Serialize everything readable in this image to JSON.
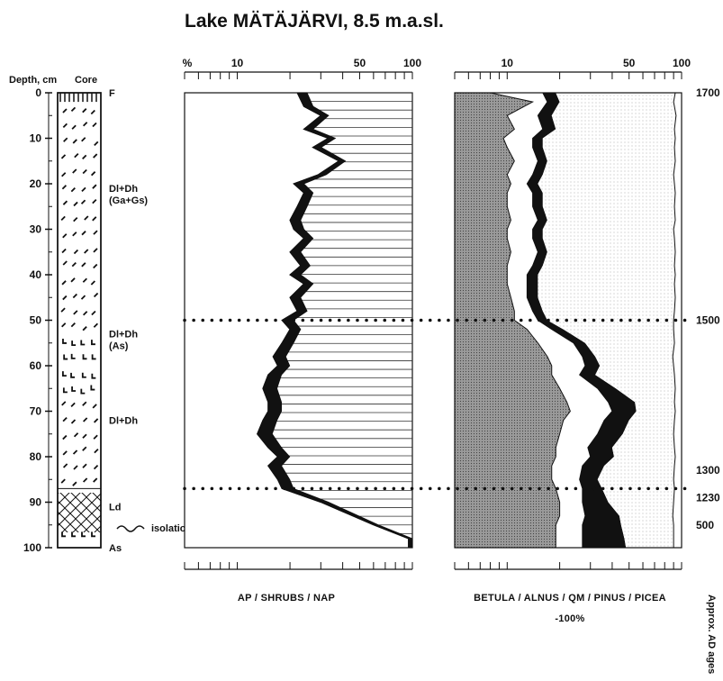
{
  "title": "Lake MÄTÄJÄRVI, 8.5 m.a.sl.",
  "colors": {
    "ink": "#111111",
    "betula": "#8a8a8a",
    "alnus": "#ffffff",
    "qm": "#111111",
    "pinus": "#e4e4e4",
    "picea": "#ffffff"
  },
  "lithology": {
    "depth_header": "Depth, cm",
    "core_header": "Core",
    "depth_ticks": [
      "0",
      "10",
      "20",
      "30",
      "40",
      "50",
      "60",
      "70",
      "80",
      "90",
      "100"
    ],
    "units": [
      {
        "label": "F",
        "depth": 0
      },
      {
        "label": "Dl+Dh",
        "sublabel": "(Ga+Gs)",
        "depth": 21
      },
      {
        "label": "Dl+Dh",
        "sublabel": "(As)",
        "depth": 53
      },
      {
        "label": "Dl+Dh",
        "sublabel": "",
        "depth": 72
      },
      {
        "label": "Ld",
        "sublabel": "",
        "depth": 91
      },
      {
        "label": "As",
        "sublabel": "",
        "depth": 100
      }
    ],
    "isolation_label": "isolation"
  },
  "chart_data": [
    {
      "type": "area",
      "x_scale": "log",
      "xlim": [
        5,
        100
      ],
      "ylim": [
        0,
        100
      ],
      "ylabel": "Depth, cm",
      "xticks": [
        "%",
        "10",
        "50",
        "100"
      ],
      "xlabel": "AP / SHRUBS / NAP",
      "depth": [
        0,
        3,
        5,
        8,
        10,
        12,
        15,
        18,
        20,
        22,
        25,
        28,
        30,
        32,
        35,
        38,
        40,
        42,
        45,
        48,
        50,
        52,
        55,
        58,
        60,
        62,
        65,
        68,
        70,
        72,
        75,
        78,
        80,
        82,
        85,
        87,
        90,
        95,
        98,
        100
      ],
      "ap": [
        22,
        24,
        30,
        24,
        33,
        27,
        38,
        29,
        21,
        24,
        22,
        20,
        21,
        24,
        20,
        23,
        20,
        24,
        20,
        22,
        18,
        20,
        18,
        16,
        17,
        15,
        14,
        15,
        15,
        14,
        13,
        15,
        17,
        15,
        17,
        18,
        30,
        60,
        95,
        95
      ],
      "shrubs": [
        2.5,
        2.5,
        2.5,
        2.5,
        2.5,
        2.5,
        2.5,
        2.5,
        2.5,
        2.5,
        2.5,
        2.5,
        2.5,
        2.5,
        2.5,
        2.5,
        2.5,
        2.5,
        2.5,
        2.5,
        2.5,
        2.5,
        2.5,
        2.5,
        2.5,
        2.5,
        2.5,
        2.5,
        2.5,
        2.5,
        2.5,
        2.5,
        2.5,
        2.5,
        2.5,
        2.5,
        2.5,
        2.5,
        2.5,
        2.5
      ],
      "series": [
        {
          "name": "AP"
        },
        {
          "name": "SHRUBS"
        },
        {
          "name": "NAP"
        }
      ]
    },
    {
      "type": "area",
      "x_scale": "log",
      "xlim": [
        5,
        100
      ],
      "ylim": [
        0,
        100
      ],
      "xticks": [
        "10",
        "50",
        "100"
      ],
      "xlabel": "BETULA / ALNUS / QM / PINUS / PICEA",
      "xlabel_note": "-100%",
      "depth": [
        0,
        2,
        5,
        8,
        10,
        12,
        15,
        18,
        20,
        22,
        25,
        28,
        30,
        32,
        35,
        38,
        40,
        42,
        45,
        48,
        50,
        52,
        55,
        58,
        60,
        62,
        65,
        68,
        70,
        72,
        75,
        78,
        80,
        82,
        85,
        87,
        90,
        93,
        95,
        98,
        100
      ],
      "betula": [
        8,
        14,
        10,
        11,
        9.5,
        10,
        11,
        10,
        10.5,
        10,
        10,
        10.5,
        10,
        10,
        10.5,
        10,
        10,
        10,
        10.5,
        11,
        11,
        13,
        15,
        17,
        18,
        18,
        20,
        22,
        23,
        21,
        20,
        19,
        19,
        18,
        18,
        19,
        20,
        20,
        19,
        19,
        19
      ],
      "alnus": [
        16,
        17,
        15,
        16,
        14,
        14,
        15,
        14,
        13,
        14,
        14,
        15,
        14,
        14,
        15,
        14,
        13,
        13,
        13,
        14,
        15,
        18,
        24,
        27,
        28,
        26,
        33,
        38,
        40,
        36,
        33,
        29,
        30,
        27,
        26,
        27,
        27,
        28,
        27,
        27,
        27
      ],
      "qm": [
        19,
        20,
        18,
        19,
        16,
        16,
        17,
        16,
        15,
        16,
        16,
        17,
        16,
        16,
        17,
        16,
        15,
        15,
        15,
        16,
        17,
        21,
        28,
        32,
        34,
        32,
        42,
        54,
        55,
        50,
        46,
        40,
        41,
        36,
        33,
        35,
        38,
        44,
        45,
        47,
        48
      ],
      "pinus": [
        92,
        90,
        93,
        91,
        92,
        91,
        92,
        90,
        91,
        92,
        91,
        92,
        90,
        91,
        92,
        91,
        92,
        91,
        92,
        91,
        90,
        90,
        91,
        89,
        90,
        91,
        92,
        91,
        92,
        91,
        90,
        91,
        92,
        91,
        90,
        91,
        90,
        89,
        90,
        90,
        90
      ],
      "picea": [
        100,
        100,
        100,
        100,
        100,
        100,
        100,
        100,
        100,
        100,
        100,
        100,
        100,
        100,
        100,
        100,
        100,
        100,
        100,
        100,
        100,
        100,
        100,
        100,
        100,
        100,
        100,
        100,
        100,
        100,
        100,
        100,
        100,
        100,
        100,
        100,
        100,
        100,
        100,
        100,
        100
      ],
      "series": [
        {
          "name": "BETULA"
        },
        {
          "name": "ALNUS"
        },
        {
          "name": "QM"
        },
        {
          "name": "PINUS"
        },
        {
          "name": "PICEA"
        }
      ]
    }
  ],
  "horizons": [
    {
      "depth": 50,
      "age": "1500"
    },
    {
      "depth": 87,
      "age": ""
    }
  ],
  "ages": [
    {
      "depth": 0,
      "label": "1700"
    },
    {
      "depth": 50,
      "label": "1500"
    },
    {
      "depth": 83,
      "label": "1300"
    },
    {
      "depth": 89,
      "label": "1230"
    },
    {
      "depth": 95,
      "label": "500"
    }
  ],
  "age_axis_label": "Approx. AD ages"
}
